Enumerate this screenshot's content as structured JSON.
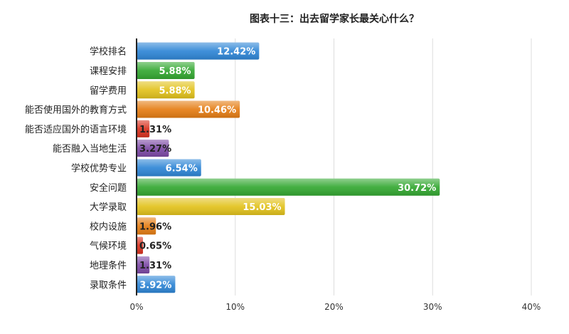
{
  "chart_data": {
    "type": "bar",
    "orientation": "horizontal",
    "title": "图表十三：出去留学家长最关心什么？",
    "categories": [
      "学校排名",
      "课程安排",
      "留学费用",
      "能否使用国外的教育方式",
      "能否适应国外的语言环境",
      "能否融入当地生活",
      "学校优势专业",
      "安全问题",
      "大学录取",
      "校内设施",
      "气候环境",
      "地理条件",
      "录取条件"
    ],
    "values": [
      12.42,
      5.88,
      5.88,
      10.46,
      1.31,
      3.27,
      6.54,
      30.72,
      15.03,
      1.96,
      0.65,
      1.31,
      3.92
    ],
    "value_labels": [
      "12.42%",
      "5.88%",
      "5.88%",
      "10.46%",
      "1.31%",
      "3.27%",
      "6.54%",
      "30.72%",
      "15.03%",
      "1.96%",
      "0.65%",
      "1.31%",
      "3.92%"
    ],
    "bar_colors": [
      "#2f86d6",
      "#34a832",
      "#e2c21c",
      "#e57d14",
      "#d9321f",
      "#7d4aa6",
      "#2f86d6",
      "#34a832",
      "#e2c21c",
      "#e57d14",
      "#d9321f",
      "#7d4aa6",
      "#2f86d6"
    ],
    "xlim": [
      0,
      40
    ],
    "xticks": [
      0,
      10,
      20,
      30,
      40
    ],
    "xtick_labels": [
      "0%",
      "10%",
      "20%",
      "30%",
      "40%"
    ],
    "xlabel": "",
    "ylabel": "",
    "grid": "vertical",
    "legend": "none"
  }
}
